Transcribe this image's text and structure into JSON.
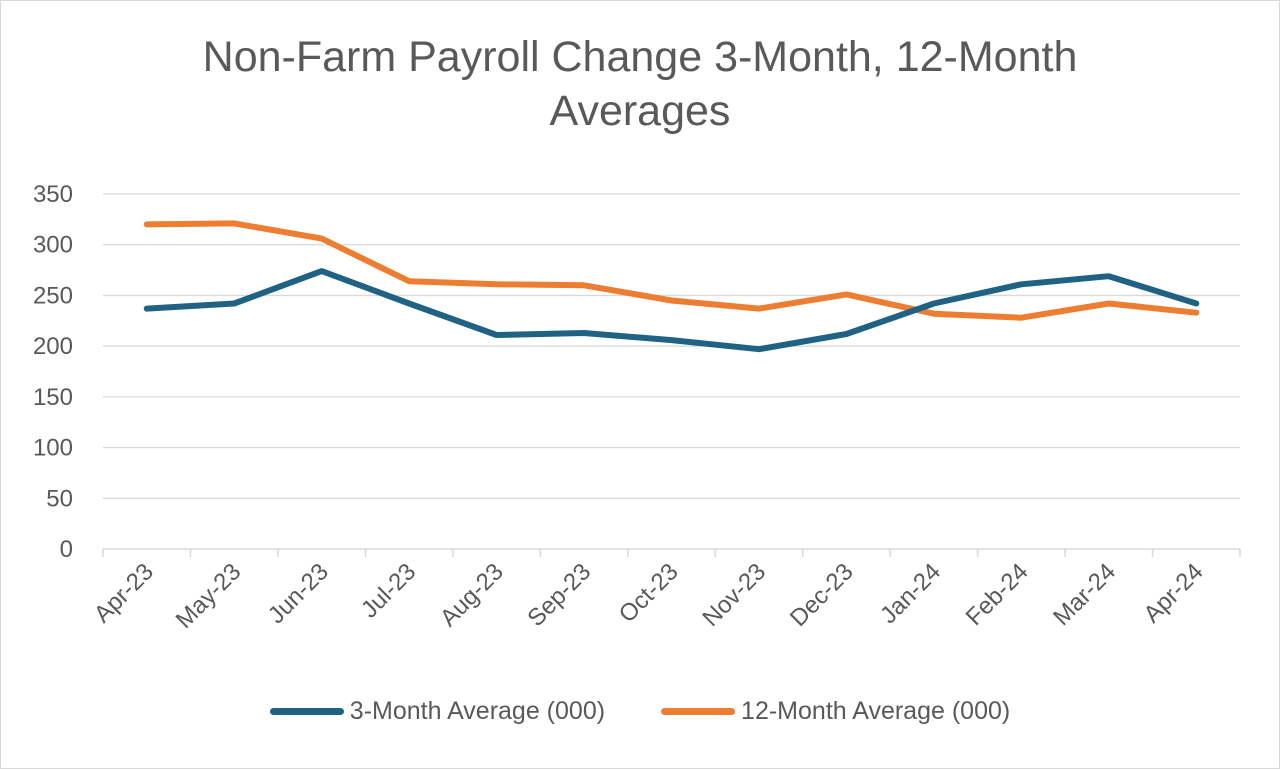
{
  "colors": {
    "series_1": "#1f6284",
    "series_2": "#ed7d31",
    "grid": "#d9d9d9",
    "text": "#595959"
  },
  "chart_data": {
    "type": "line",
    "title": "Non-Farm Payroll Change 3-Month, 12-Month Averages",
    "xlabel": "",
    "ylabel": "",
    "categories": [
      "Apr-23",
      "May-23",
      "Jun-23",
      "Jul-23",
      "Aug-23",
      "Sep-23",
      "Oct-23",
      "Nov-23",
      "Dec-23",
      "Jan-24",
      "Feb-24",
      "Mar-24",
      "Apr-24"
    ],
    "y_ticks": [
      0,
      50,
      100,
      150,
      200,
      250,
      300,
      350
    ],
    "ylim": [
      0,
      350
    ],
    "grid": true,
    "legend_position": "bottom",
    "series": [
      {
        "name": "3-Month Average (000)",
        "color": "#1f6284",
        "values": [
          237,
          242,
          274,
          242,
          211,
          213,
          206,
          197,
          212,
          242,
          261,
          269,
          242
        ]
      },
      {
        "name": "12-Month Average (000)",
        "color": "#ed7d31",
        "values": [
          320,
          321,
          306,
          264,
          261,
          260,
          245,
          237,
          251,
          232,
          228,
          242,
          233
        ]
      }
    ]
  }
}
